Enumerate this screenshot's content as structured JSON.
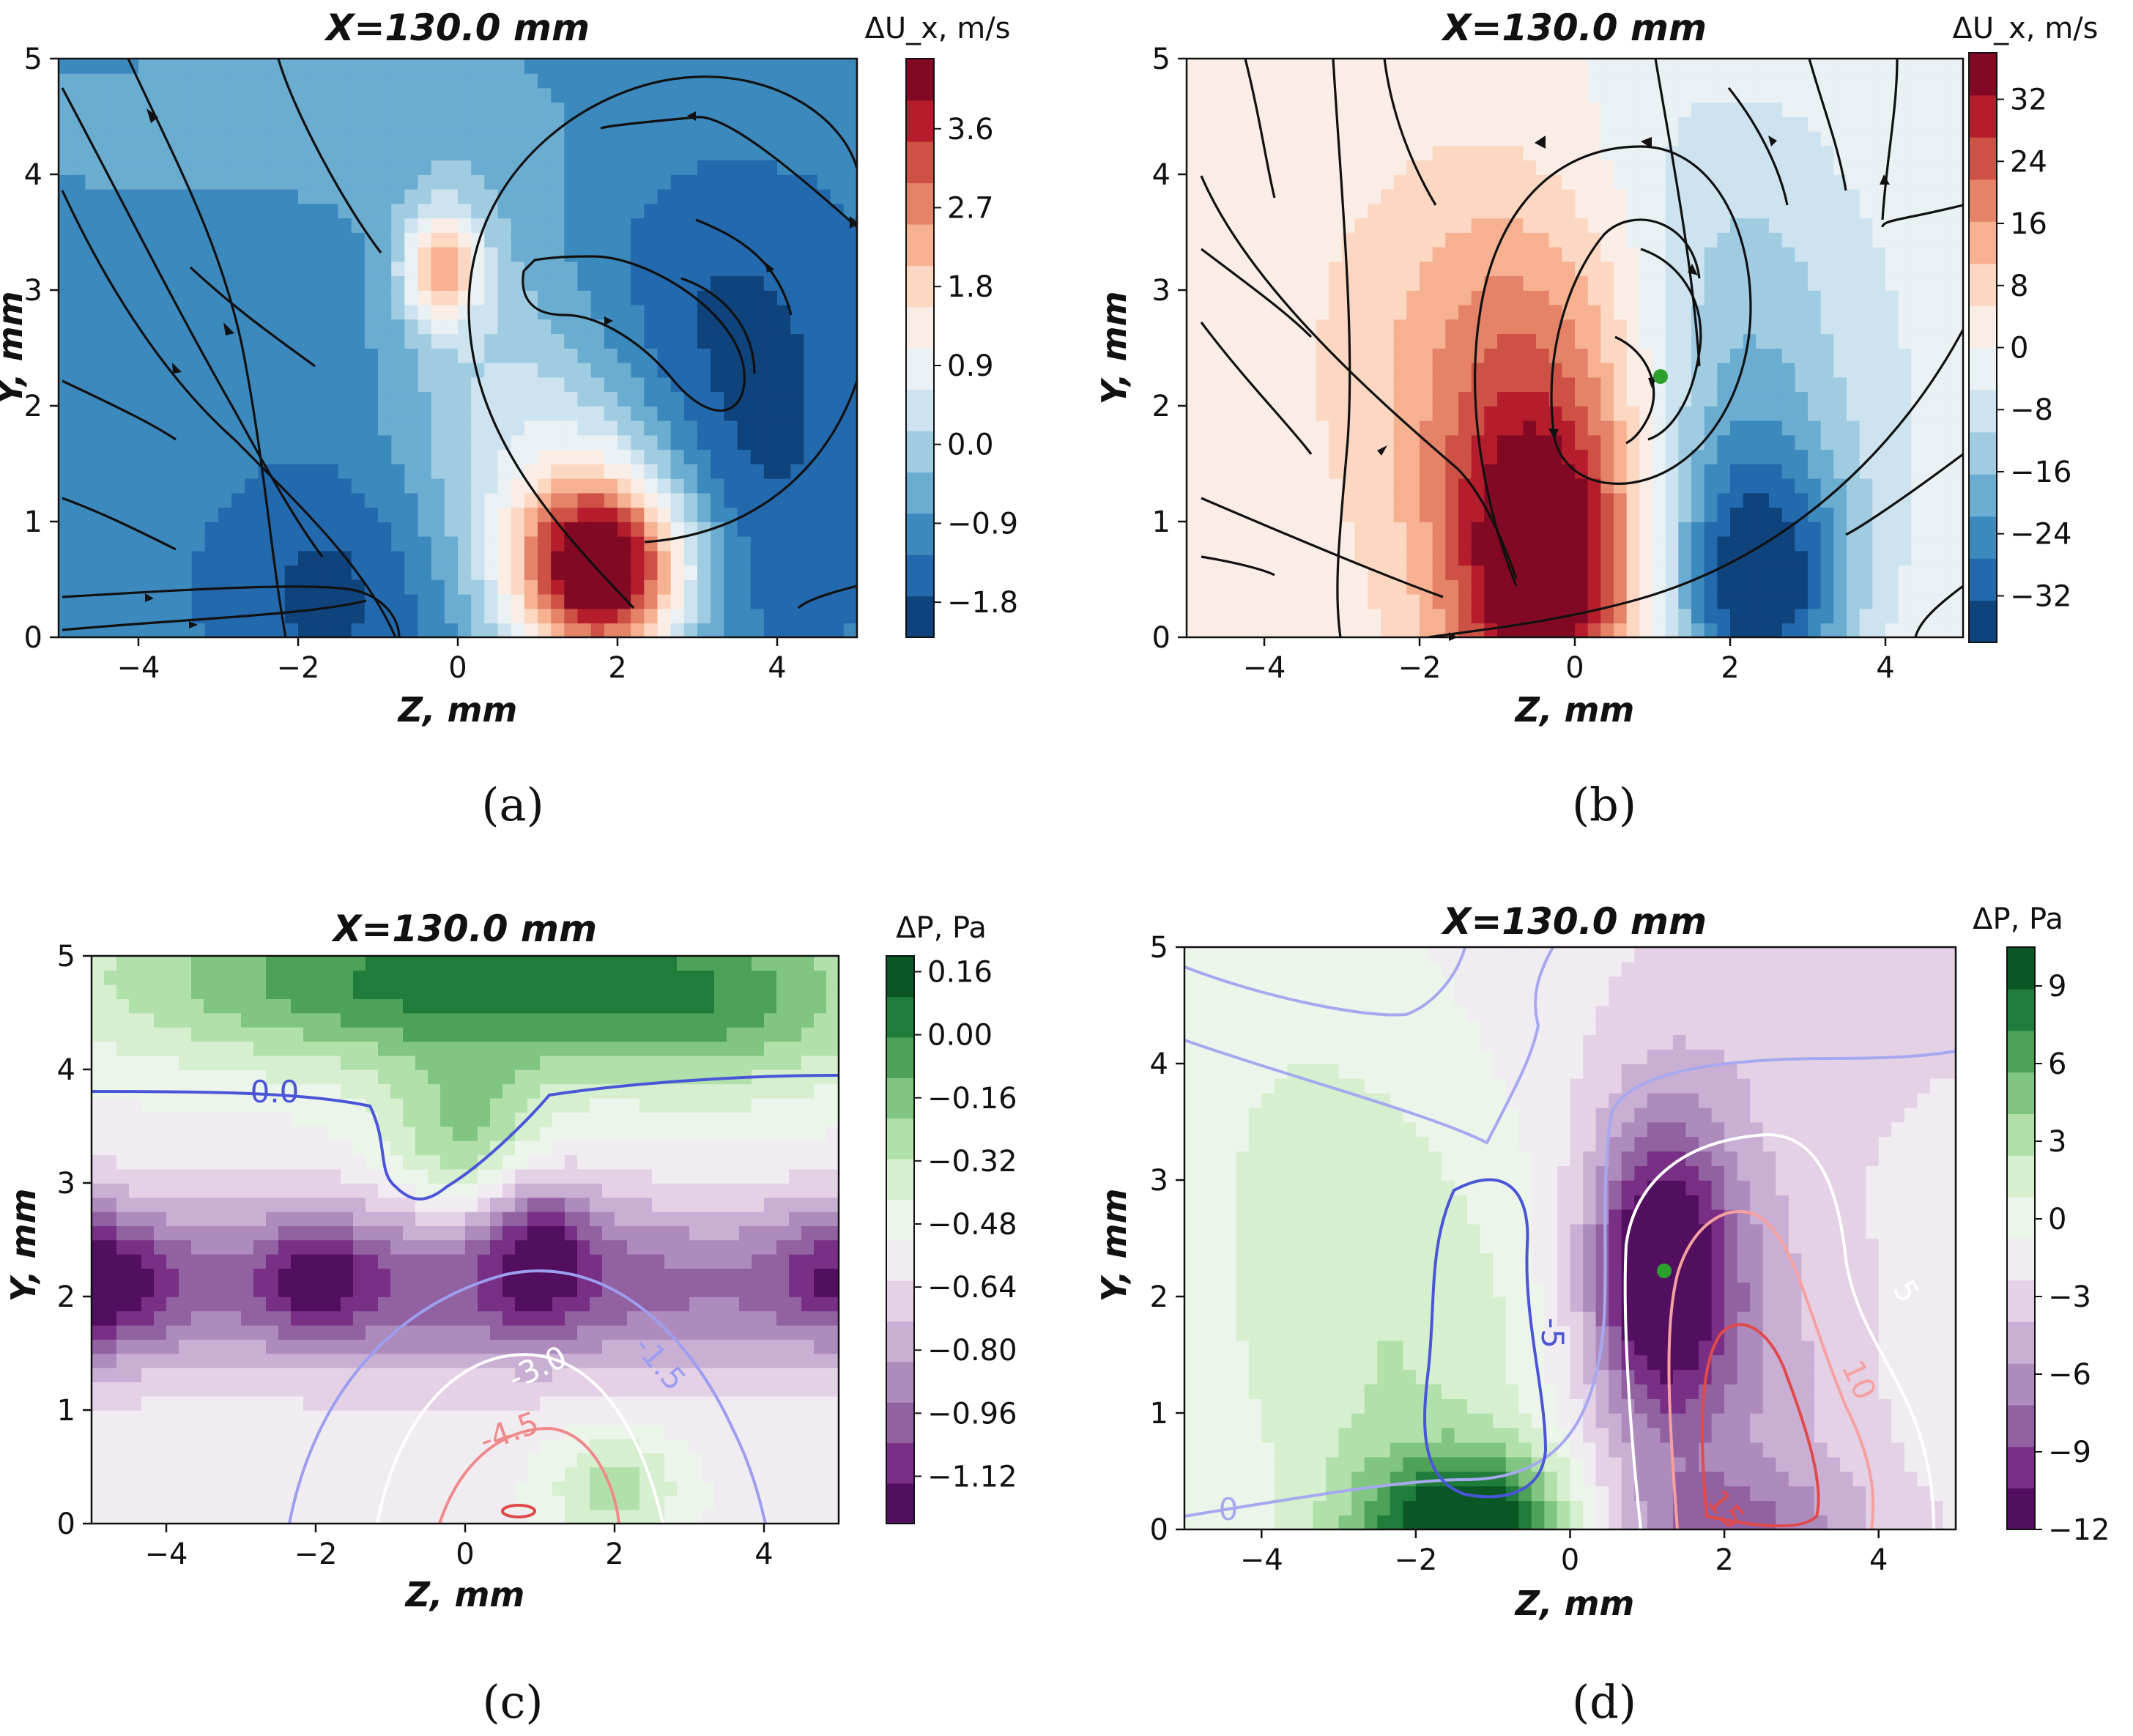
{
  "chart_data": [
    {
      "id": "a",
      "type": "heatmap",
      "title": "X=130.0 mm",
      "xlabel": "Z, mm",
      "ylabel": "Y, mm",
      "xlim": [
        -5,
        5
      ],
      "ylim": [
        0,
        5
      ],
      "xticks": [
        -4,
        -2,
        0,
        2,
        4
      ],
      "yticks": [
        0,
        1,
        2,
        3,
        4,
        5
      ],
      "colorbar": {
        "label": "ΔU_x, m/s",
        "vmin": -2.2,
        "vmax": 4.4,
        "ticks": [
          -1.8,
          -0.9,
          0.0,
          0.9,
          1.8,
          2.7,
          3.6
        ],
        "tick_labels": [
          "−1.8",
          "−0.9",
          "0.0",
          "0.9",
          "1.8",
          "2.7",
          "3.6"
        ],
        "colormap": "RdBu_r"
      },
      "overlay": "streamlines",
      "background": -1.1,
      "features": [
        {
          "z": 1.8,
          "y": 0.55,
          "sz": 0.75,
          "sy": 0.55,
          "amp": 5.2
        },
        {
          "z": 1.6,
          "y": 1.3,
          "sz": 0.9,
          "sy": 0.9,
          "amp": 1.4
        },
        {
          "z": -0.2,
          "y": 3.2,
          "sz": 0.35,
          "sy": 0.35,
          "amp": 2.8
        },
        {
          "z": 0.3,
          "y": 2.2,
          "sz": 0.9,
          "sy": 1.5,
          "amp": 1.0
        },
        {
          "z": -1.5,
          "y": 0.4,
          "sz": 1.0,
          "sy": 0.7,
          "amp": -0.8
        },
        {
          "z": 3.8,
          "y": 1.5,
          "sz": 1.0,
          "sy": 1.2,
          "amp": -0.6
        },
        {
          "z": 3.0,
          "y": 2.8,
          "sz": 1.2,
          "sy": 0.9,
          "amp": -0.5
        },
        {
          "z": -3.0,
          "y": 4.4,
          "sz": 3.0,
          "sy": 0.6,
          "amp": 0.5
        }
      ],
      "caption": "(a)"
    },
    {
      "id": "b",
      "type": "heatmap",
      "title": "X=130.0 mm",
      "xlabel": "Z, mm",
      "ylabel": "Y, mm",
      "xlim": [
        -5,
        5
      ],
      "ylim": [
        0,
        5
      ],
      "xticks": [
        -4,
        -2,
        0,
        2,
        4
      ],
      "yticks": [
        0,
        1,
        2,
        3,
        4,
        5
      ],
      "colorbar": {
        "label": "ΔU_x, m/s",
        "vmin": -38,
        "vmax": 38,
        "ticks": [
          -32,
          -24,
          -16,
          -8,
          0,
          8,
          16,
          24,
          32
        ],
        "tick_labels": [
          "−32",
          "−24",
          "−16",
          "−8",
          "0",
          "8",
          "16",
          "24",
          "32"
        ],
        "colormap": "RdBu_r"
      },
      "overlay": "streamlines",
      "marker": {
        "z": 1.15,
        "y": 2.25,
        "color": "#2ca02c"
      },
      "background": 1.5,
      "features": [
        {
          "z": -0.4,
          "y": 0.5,
          "sz": 0.8,
          "sy": 0.9,
          "amp": 34
        },
        {
          "z": -0.6,
          "y": 1.8,
          "sz": 1.1,
          "sy": 1.4,
          "amp": 16
        },
        {
          "z": -1.5,
          "y": 2.5,
          "sz": 1.6,
          "sy": 1.4,
          "amp": 6
        },
        {
          "z": 2.4,
          "y": 0.4,
          "sz": 0.8,
          "sy": 0.8,
          "amp": -32
        },
        {
          "z": 2.0,
          "y": 2.0,
          "sz": 1.0,
          "sy": 1.5,
          "amp": -16
        },
        {
          "z": 3.8,
          "y": 2.2,
          "sz": 1.4,
          "sy": 1.8,
          "amp": -6
        },
        {
          "z": 1.0,
          "y": 4.3,
          "sz": 1.6,
          "sy": 0.8,
          "amp": -4
        }
      ],
      "caption": "(b)"
    },
    {
      "id": "c",
      "type": "heatmap",
      "title": "X=130.0 mm",
      "xlabel": "Z, mm",
      "ylabel": "Y, mm",
      "xlim": [
        -5,
        5
      ],
      "ylim": [
        0,
        5
      ],
      "xticks": [
        -4,
        -2,
        0,
        2,
        4
      ],
      "yticks": [
        0,
        1,
        2,
        3,
        4,
        5
      ],
      "colorbar": {
        "label": "ΔP, Pa",
        "vmin": -1.24,
        "vmax": 0.2,
        "ticks": [
          -1.12,
          -0.96,
          -0.8,
          -0.64,
          -0.48,
          -0.32,
          -0.16,
          0.0,
          0.16
        ],
        "tick_labels": [
          "−1.12",
          "−0.96",
          "−0.80",
          "−0.64",
          "−0.48",
          "−0.32",
          "−0.16",
          "0.00",
          "0.16"
        ],
        "colormap": "PRGn"
      },
      "overlay": "contour_lines",
      "contour_labels": [
        "0.0",
        "-1.5",
        "-3.0",
        "-4.5"
      ],
      "background": -0.55,
      "features": [
        {
          "z": 0.0,
          "y": 4.8,
          "sz": 3.5,
          "sy": 0.55,
          "amp": 0.6
        },
        {
          "z": 3.5,
          "y": 4.4,
          "sz": 1.5,
          "sy": 0.6,
          "amp": 0.2
        },
        {
          "z": 0.0,
          "y": 2.1,
          "sz": 6.0,
          "sy": 0.55,
          "amp": -0.45
        },
        {
          "z": -5.0,
          "y": 2.15,
          "sz": 0.7,
          "sy": 0.45,
          "amp": -0.45
        },
        {
          "z": -2.0,
          "y": 2.2,
          "sz": 0.5,
          "sy": 0.35,
          "amp": -0.3
        },
        {
          "z": 1.0,
          "y": 2.5,
          "sz": 0.5,
          "sy": 0.5,
          "amp": -0.35
        },
        {
          "z": 5.0,
          "y": 2.2,
          "sz": 0.6,
          "sy": 0.4,
          "amp": -0.3
        },
        {
          "z": 0.0,
          "y": 3.4,
          "sz": 0.8,
          "sy": 0.5,
          "amp": 0.35
        },
        {
          "z": 2.0,
          "y": 0.3,
          "sz": 0.6,
          "sy": 0.35,
          "amp": 0.3
        }
      ],
      "caption": "(c)"
    },
    {
      "id": "d",
      "type": "heatmap",
      "title": "X=130.0 mm",
      "xlabel": "Z, mm",
      "ylabel": "Y, mm",
      "xlim": [
        -5,
        5
      ],
      "ylim": [
        0,
        5
      ],
      "xticks": [
        -4,
        -2,
        0,
        2,
        4
      ],
      "yticks": [
        0,
        1,
        2,
        3,
        4,
        5
      ],
      "colorbar": {
        "label": "ΔP, Pa",
        "vmin": -12,
        "vmax": 10.5,
        "ticks": [
          -12,
          -9,
          -6,
          -3,
          0,
          3,
          6,
          9
        ],
        "tick_labels": [
          "−12",
          "−9",
          "−6",
          "−3",
          "0",
          "3",
          "6",
          "9"
        ],
        "colormap": "PRGn"
      },
      "overlay": "contour_lines",
      "contour_labels": [
        "0",
        "-5",
        "5",
        "10",
        "15"
      ],
      "marker": {
        "z": 1.15,
        "y": 2.25,
        "color": "#2ca02c"
      },
      "background": -1.5,
      "features": [
        {
          "z": -1.3,
          "y": 0.0,
          "sz": 1.0,
          "sy": 0.45,
          "amp": 12
        },
        {
          "z": -2.0,
          "y": 1.2,
          "sz": 1.8,
          "sy": 1.5,
          "amp": 3.5
        },
        {
          "z": -3.5,
          "y": 3.5,
          "sz": 1.5,
          "sy": 1.5,
          "amp": 2.0
        },
        {
          "z": 1.15,
          "y": 2.25,
          "sz": 0.65,
          "sy": 0.9,
          "amp": -10.5
        },
        {
          "z": 1.8,
          "y": 1.4,
          "sz": 1.3,
          "sy": 1.5,
          "amp": -4.0
        },
        {
          "z": 2.0,
          "y": 0.0,
          "sz": 1.5,
          "sy": 0.4,
          "amp": -4.0
        },
        {
          "z": 3.2,
          "y": 4.5,
          "sz": 2.0,
          "sy": 0.8,
          "amp": -1.5
        }
      ],
      "caption": "(d)"
    }
  ]
}
